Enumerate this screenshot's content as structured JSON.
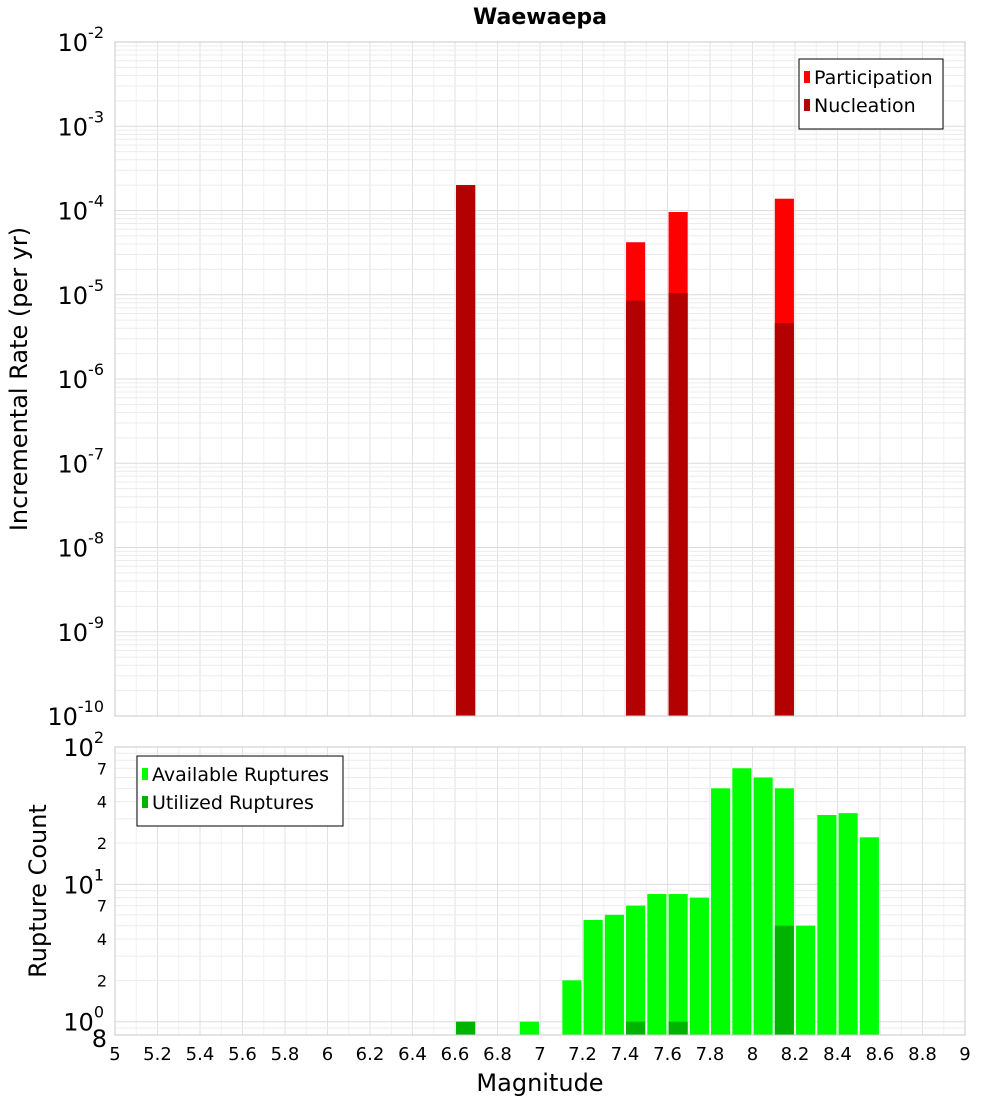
{
  "chart_data": [
    {
      "type": "bar",
      "title": "Waewaepa",
      "xlabel": "",
      "ylabel": "Incremental Rate (per yr)",
      "xlim": [
        5,
        9
      ],
      "ylim": [
        1e-10,
        0.01
      ],
      "yscale": "log",
      "y_major_ticks": [
        {
          "base": "10",
          "exp": "-10"
        },
        {
          "base": "10",
          "exp": "-9"
        },
        {
          "base": "10",
          "exp": "-8"
        },
        {
          "base": "10",
          "exp": "-7"
        },
        {
          "base": "10",
          "exp": "-6"
        },
        {
          "base": "10",
          "exp": "-5"
        },
        {
          "base": "10",
          "exp": "-4"
        },
        {
          "base": "10",
          "exp": "-3"
        },
        {
          "base": "10",
          "exp": "-2"
        }
      ],
      "grid": true,
      "legend_position": "top-right",
      "bar_width": 0.09,
      "series": [
        {
          "name": "Participation",
          "color": "#ff0000",
          "x": [
            6.65,
            7.45,
            7.65,
            8.15
          ],
          "values": [
            0.0002,
            4.2e-05,
            9.6e-05,
            0.000138
          ]
        },
        {
          "name": "Nucleation",
          "color": "#b30000",
          "x": [
            6.65,
            7.45,
            7.65,
            8.15
          ],
          "values": [
            0.0002,
            8.5e-06,
            1.05e-05,
            4.6e-06
          ]
        }
      ]
    },
    {
      "type": "bar",
      "title": "",
      "xlabel": "Magnitude",
      "ylabel": "Rupture Count",
      "xlim": [
        5,
        9
      ],
      "ylim": [
        0.8,
        100
      ],
      "yscale": "log",
      "x_ticks": [
        "5",
        "5.2",
        "5.4",
        "5.6",
        "5.8",
        "6",
        "6.2",
        "6.4",
        "6.6",
        "6.8",
        "7",
        "7.2",
        "7.4",
        "7.6",
        "7.8",
        "8",
        "8.2",
        "8.4",
        "8.6",
        "8.8",
        "9"
      ],
      "y_major_ticks": [
        {
          "value": 1,
          "base": "10",
          "exp": "0"
        },
        {
          "value": 10,
          "base": "10",
          "exp": "1"
        },
        {
          "value": 100,
          "base": "10",
          "exp": "2"
        }
      ],
      "y_minor_ticks": [
        {
          "value": 0.8,
          "label": "8"
        },
        {
          "value": 2,
          "label": "2"
        },
        {
          "value": 4,
          "label": "4"
        },
        {
          "value": 7,
          "label": "7"
        },
        {
          "value": 20,
          "label": "2"
        },
        {
          "value": 40,
          "label": "4"
        },
        {
          "value": 70,
          "label": "7"
        }
      ],
      "grid": true,
      "legend_position": "top-left",
      "bar_width": 0.09,
      "series": [
        {
          "name": "Available Ruptures",
          "color": "#00ff00",
          "x": [
            6.65,
            6.95,
            7.15,
            7.25,
            7.35,
            7.45,
            7.55,
            7.65,
            7.75,
            7.85,
            7.95,
            8.05,
            8.15,
            8.25,
            8.35,
            8.45,
            8.55
          ],
          "values": [
            1,
            1,
            2,
            5.5,
            6,
            7,
            8.5,
            8.5,
            8,
            50,
            70,
            60,
            50,
            5,
            32,
            33,
            22
          ]
        },
        {
          "name": "Utilized Ruptures",
          "color": "#00b300",
          "x": [
            6.65,
            7.45,
            7.65,
            8.15
          ],
          "values": [
            1,
            1,
            1,
            5
          ]
        }
      ]
    }
  ]
}
